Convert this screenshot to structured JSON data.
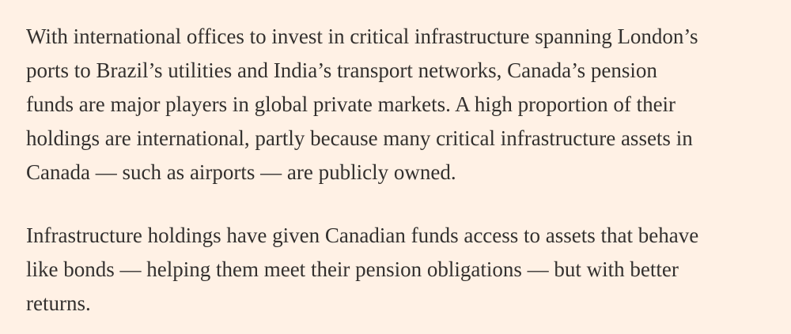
{
  "article": {
    "paragraphs": [
      {
        "lines": [
          "With international offices to invest in critical infrastructure spanning London’s",
          "ports to Brazil’s utilities and India’s transport networks, Canada’s pension",
          "funds are major players in global private markets. A high proportion of their",
          "holdings are international, partly because many critical infrastructure assets in",
          "Canada — such as airports — are publicly owned."
        ]
      },
      {
        "lines": [
          "Infrastructure holdings have given Canadian funds access to assets that behave",
          "like bonds — helping them meet their pension obligations — but with better",
          "returns."
        ]
      }
    ]
  }
}
